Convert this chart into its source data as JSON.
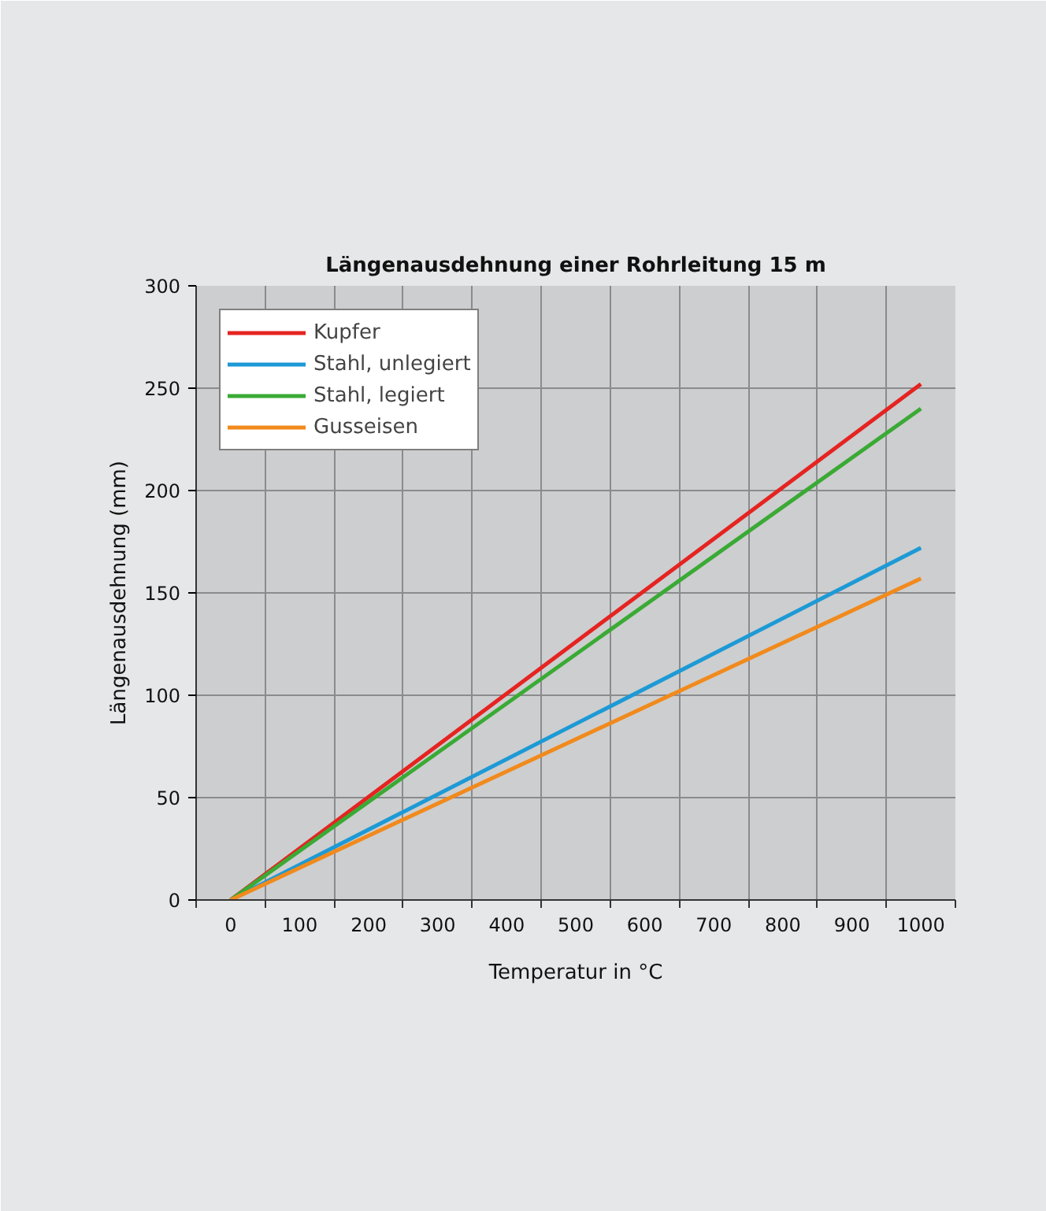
{
  "chart_data": {
    "type": "line",
    "title": "Längenausdehnung einer Rohrleitung 15 m",
    "xlabel": "Temperatur in °C",
    "ylabel": "Längenausdehnung (mm)",
    "x": [
      0,
      1000
    ],
    "series": [
      {
        "name": "Kupfer",
        "color": "#e52421",
        "values": [
          0,
          252
        ]
      },
      {
        "name": "Stahl, unlegiert",
        "color": "#1d9ad6",
        "values": [
          0,
          172
        ]
      },
      {
        "name": "Stahl, legiert",
        "color": "#3aaa35",
        "values": [
          0,
          240
        ]
      },
      {
        "name": "Gusseisen",
        "color": "#f18a1c",
        "values": [
          0,
          157
        ]
      }
    ],
    "xlim": [
      -50,
      1050
    ],
    "ylim": [
      0,
      300
    ],
    "xticks": [
      0,
      100,
      200,
      300,
      400,
      500,
      600,
      700,
      800,
      900,
      1000
    ],
    "yticks": [
      0,
      50,
      100,
      150,
      200,
      250,
      300
    ],
    "grid": true,
    "legend": "top left",
    "marker": "none",
    "line_style": "solid"
  }
}
